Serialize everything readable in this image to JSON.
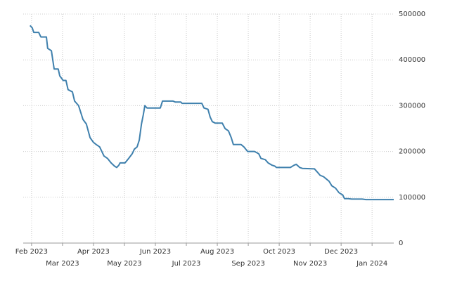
{
  "chart_data": {
    "type": "line",
    "x": [
      -0.05,
      0.02,
      0.07,
      0.23,
      0.3,
      0.48,
      0.52,
      0.64,
      0.73,
      0.86,
      0.91,
      1.02,
      1.11,
      1.18,
      1.32,
      1.39,
      1.52,
      1.66,
      1.77,
      1.89,
      2.0,
      2.09,
      2.2,
      2.34,
      2.45,
      2.57,
      2.68,
      2.75,
      2.82,
      2.86,
      3.02,
      3.14,
      3.25,
      3.32,
      3.41,
      3.48,
      3.55,
      3.61,
      3.66,
      3.73,
      4.16,
      4.23,
      4.57,
      4.64,
      4.82,
      4.86,
      5.5,
      5.57,
      5.7,
      5.77,
      5.84,
      5.93,
      6.16,
      6.25,
      6.36,
      6.45,
      6.52,
      6.77,
      6.86,
      6.98,
      7.2,
      7.34,
      7.41,
      7.55,
      7.64,
      7.77,
      7.86,
      7.91,
      8.36,
      8.48,
      8.55,
      8.66,
      8.75,
      9.14,
      9.23,
      9.32,
      9.43,
      9.52,
      9.61,
      9.7,
      9.82,
      9.93,
      10.05,
      10.11,
      10.23,
      10.34,
      10.68,
      10.8,
      11.7
    ],
    "series": [
      {
        "color": "#3f80ad",
        "values": [
          475000,
          470000,
          460000,
          460000,
          450000,
          450000,
          425000,
          420000,
          380000,
          380000,
          365000,
          355000,
          355000,
          335000,
          330000,
          310000,
          300000,
          270000,
          260000,
          230000,
          220000,
          215000,
          210000,
          190000,
          185000,
          175000,
          168000,
          165000,
          170000,
          175000,
          175000,
          185000,
          195000,
          205000,
          210000,
          225000,
          260000,
          280000,
          300000,
          295000,
          295000,
          310000,
          310000,
          308000,
          308000,
          305000,
          305000,
          295000,
          292000,
          275000,
          265000,
          262000,
          262000,
          250000,
          245000,
          230000,
          215000,
          215000,
          210000,
          200000,
          200000,
          195000,
          185000,
          182000,
          175000,
          170000,
          168000,
          165000,
          165000,
          170000,
          172000,
          165000,
          163000,
          162000,
          155000,
          148000,
          145000,
          140000,
          135000,
          125000,
          120000,
          110000,
          105000,
          97000,
          97000,
          96000,
          96000,
          95000,
          95000
        ]
      }
    ],
    "xlim": [
      -0.27,
      11.7
    ],
    "xticks": [
      {
        "value": 0,
        "label": "Feb 2023"
      },
      {
        "value": 1,
        "label": "Mar 2023"
      },
      {
        "value": 2,
        "label": "Apr 2023"
      },
      {
        "value": 3,
        "label": "May 2023"
      },
      {
        "value": 4,
        "label": "Jun 2023"
      },
      {
        "value": 5,
        "label": "Jul 2023"
      },
      {
        "value": 6,
        "label": "Aug 2023"
      },
      {
        "value": 7,
        "label": "Sep 2023"
      },
      {
        "value": 8,
        "label": "Oct 2023"
      },
      {
        "value": 9,
        "label": "Nov 2023"
      },
      {
        "value": 10,
        "label": "Dec 2023"
      },
      {
        "value": 11,
        "label": "Jan 2024"
      }
    ],
    "ylim": [
      0,
      500000
    ],
    "yticks": [
      0,
      100000,
      200000,
      300000,
      400000,
      500000
    ],
    "grid": true
  }
}
